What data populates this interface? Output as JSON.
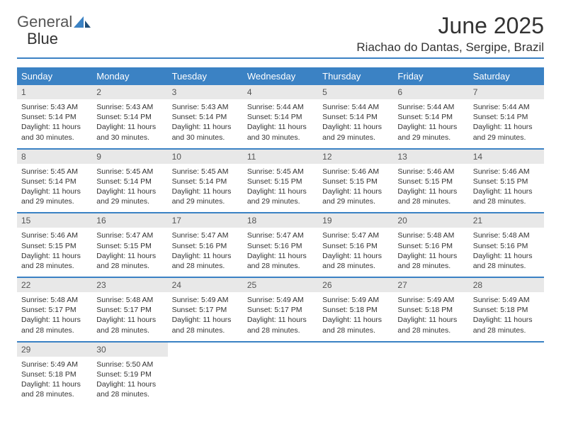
{
  "brand": {
    "text1": "General",
    "text2": "Blue"
  },
  "title": "June 2025",
  "location": "Riachao do Dantas, Sergipe, Brazil",
  "colors": {
    "accent": "#3b82c4",
    "header_bg": "#3b82c4",
    "header_text": "#ffffff",
    "daynum_bg": "#e8e8e8",
    "text": "#333333",
    "background": "#ffffff"
  },
  "weekdays": [
    "Sunday",
    "Monday",
    "Tuesday",
    "Wednesday",
    "Thursday",
    "Friday",
    "Saturday"
  ],
  "weeks": [
    [
      {
        "n": "1",
        "sr": "Sunrise: 5:43 AM",
        "ss": "Sunset: 5:14 PM",
        "dl": "Daylight: 11 hours and 30 minutes."
      },
      {
        "n": "2",
        "sr": "Sunrise: 5:43 AM",
        "ss": "Sunset: 5:14 PM",
        "dl": "Daylight: 11 hours and 30 minutes."
      },
      {
        "n": "3",
        "sr": "Sunrise: 5:43 AM",
        "ss": "Sunset: 5:14 PM",
        "dl": "Daylight: 11 hours and 30 minutes."
      },
      {
        "n": "4",
        "sr": "Sunrise: 5:44 AM",
        "ss": "Sunset: 5:14 PM",
        "dl": "Daylight: 11 hours and 30 minutes."
      },
      {
        "n": "5",
        "sr": "Sunrise: 5:44 AM",
        "ss": "Sunset: 5:14 PM",
        "dl": "Daylight: 11 hours and 29 minutes."
      },
      {
        "n": "6",
        "sr": "Sunrise: 5:44 AM",
        "ss": "Sunset: 5:14 PM",
        "dl": "Daylight: 11 hours and 29 minutes."
      },
      {
        "n": "7",
        "sr": "Sunrise: 5:44 AM",
        "ss": "Sunset: 5:14 PM",
        "dl": "Daylight: 11 hours and 29 minutes."
      }
    ],
    [
      {
        "n": "8",
        "sr": "Sunrise: 5:45 AM",
        "ss": "Sunset: 5:14 PM",
        "dl": "Daylight: 11 hours and 29 minutes."
      },
      {
        "n": "9",
        "sr": "Sunrise: 5:45 AM",
        "ss": "Sunset: 5:14 PM",
        "dl": "Daylight: 11 hours and 29 minutes."
      },
      {
        "n": "10",
        "sr": "Sunrise: 5:45 AM",
        "ss": "Sunset: 5:14 PM",
        "dl": "Daylight: 11 hours and 29 minutes."
      },
      {
        "n": "11",
        "sr": "Sunrise: 5:45 AM",
        "ss": "Sunset: 5:15 PM",
        "dl": "Daylight: 11 hours and 29 minutes."
      },
      {
        "n": "12",
        "sr": "Sunrise: 5:46 AM",
        "ss": "Sunset: 5:15 PM",
        "dl": "Daylight: 11 hours and 29 minutes."
      },
      {
        "n": "13",
        "sr": "Sunrise: 5:46 AM",
        "ss": "Sunset: 5:15 PM",
        "dl": "Daylight: 11 hours and 28 minutes."
      },
      {
        "n": "14",
        "sr": "Sunrise: 5:46 AM",
        "ss": "Sunset: 5:15 PM",
        "dl": "Daylight: 11 hours and 28 minutes."
      }
    ],
    [
      {
        "n": "15",
        "sr": "Sunrise: 5:46 AM",
        "ss": "Sunset: 5:15 PM",
        "dl": "Daylight: 11 hours and 28 minutes."
      },
      {
        "n": "16",
        "sr": "Sunrise: 5:47 AM",
        "ss": "Sunset: 5:15 PM",
        "dl": "Daylight: 11 hours and 28 minutes."
      },
      {
        "n": "17",
        "sr": "Sunrise: 5:47 AM",
        "ss": "Sunset: 5:16 PM",
        "dl": "Daylight: 11 hours and 28 minutes."
      },
      {
        "n": "18",
        "sr": "Sunrise: 5:47 AM",
        "ss": "Sunset: 5:16 PM",
        "dl": "Daylight: 11 hours and 28 minutes."
      },
      {
        "n": "19",
        "sr": "Sunrise: 5:47 AM",
        "ss": "Sunset: 5:16 PM",
        "dl": "Daylight: 11 hours and 28 minutes."
      },
      {
        "n": "20",
        "sr": "Sunrise: 5:48 AM",
        "ss": "Sunset: 5:16 PM",
        "dl": "Daylight: 11 hours and 28 minutes."
      },
      {
        "n": "21",
        "sr": "Sunrise: 5:48 AM",
        "ss": "Sunset: 5:16 PM",
        "dl": "Daylight: 11 hours and 28 minutes."
      }
    ],
    [
      {
        "n": "22",
        "sr": "Sunrise: 5:48 AM",
        "ss": "Sunset: 5:17 PM",
        "dl": "Daylight: 11 hours and 28 minutes."
      },
      {
        "n": "23",
        "sr": "Sunrise: 5:48 AM",
        "ss": "Sunset: 5:17 PM",
        "dl": "Daylight: 11 hours and 28 minutes."
      },
      {
        "n": "24",
        "sr": "Sunrise: 5:49 AM",
        "ss": "Sunset: 5:17 PM",
        "dl": "Daylight: 11 hours and 28 minutes."
      },
      {
        "n": "25",
        "sr": "Sunrise: 5:49 AM",
        "ss": "Sunset: 5:17 PM",
        "dl": "Daylight: 11 hours and 28 minutes."
      },
      {
        "n": "26",
        "sr": "Sunrise: 5:49 AM",
        "ss": "Sunset: 5:18 PM",
        "dl": "Daylight: 11 hours and 28 minutes."
      },
      {
        "n": "27",
        "sr": "Sunrise: 5:49 AM",
        "ss": "Sunset: 5:18 PM",
        "dl": "Daylight: 11 hours and 28 minutes."
      },
      {
        "n": "28",
        "sr": "Sunrise: 5:49 AM",
        "ss": "Sunset: 5:18 PM",
        "dl": "Daylight: 11 hours and 28 minutes."
      }
    ],
    [
      {
        "n": "29",
        "sr": "Sunrise: 5:49 AM",
        "ss": "Sunset: 5:18 PM",
        "dl": "Daylight: 11 hours and 28 minutes."
      },
      {
        "n": "30",
        "sr": "Sunrise: 5:50 AM",
        "ss": "Sunset: 5:19 PM",
        "dl": "Daylight: 11 hours and 28 minutes."
      },
      {
        "empty": true
      },
      {
        "empty": true
      },
      {
        "empty": true
      },
      {
        "empty": true
      },
      {
        "empty": true
      }
    ]
  ]
}
